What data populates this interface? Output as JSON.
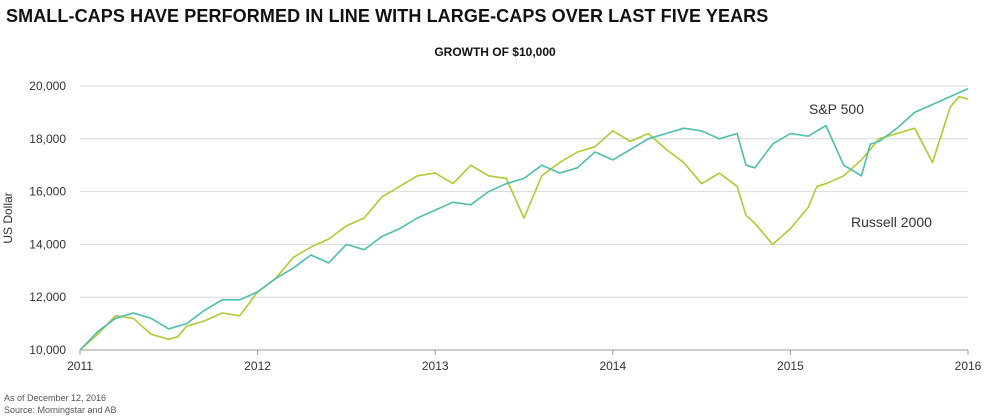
{
  "title": "SMALL-CAPS HAVE PERFORMED IN LINE WITH LARGE-CAPS OVER LAST FIVE YEARS",
  "subtitle": "GROWTH OF $10,000",
  "footnotes": {
    "as_of": "As of December 12, 2016",
    "source": "Source: Morningstar and AB"
  },
  "chart_data": {
    "type": "line",
    "title": "GROWTH OF $10,000",
    "xlabel": "",
    "ylabel": "US Dollar",
    "xlim": [
      2011.0,
      2016.0
    ],
    "ylim": [
      10000,
      20000
    ],
    "x_ticks": [
      2011,
      2012,
      2013,
      2014,
      2015,
      2016
    ],
    "x_tick_labels": [
      "2011",
      "2012",
      "2013",
      "2014",
      "2015",
      "2016"
    ],
    "y_ticks": [
      10000,
      12000,
      14000,
      16000,
      18000,
      20000
    ],
    "y_tick_labels": [
      "10,000",
      "12,000",
      "14,000",
      "16,000",
      "18,000",
      "20,000"
    ],
    "grid": "horizontal",
    "series": [
      {
        "name": "S&P 500",
        "color": "#4dbfad",
        "x": [
          2011.0,
          2011.1,
          2011.2,
          2011.3,
          2011.4,
          2011.5,
          2011.55,
          2011.6,
          2011.7,
          2011.8,
          2011.9,
          2012.0,
          2012.1,
          2012.2,
          2012.3,
          2012.4,
          2012.5,
          2012.6,
          2012.7,
          2012.8,
          2012.9,
          2013.0,
          2013.1,
          2013.2,
          2013.3,
          2013.4,
          2013.5,
          2013.6,
          2013.7,
          2013.8,
          2013.9,
          2014.0,
          2014.1,
          2014.2,
          2014.3,
          2014.4,
          2014.5,
          2014.6,
          2014.7,
          2014.75,
          2014.8,
          2014.9,
          2015.0,
          2015.1,
          2015.2,
          2015.3,
          2015.4,
          2015.45,
          2015.5,
          2015.6,
          2015.7,
          2015.8,
          2015.9,
          2016.0
        ],
        "values": [
          10000,
          10700,
          11200,
          11400,
          11200,
          10800,
          10900,
          11000,
          11500,
          11900,
          11900,
          12200,
          12700,
          13100,
          13600,
          13300,
          14000,
          13800,
          14300,
          14600,
          15000,
          15300,
          15600,
          15500,
          16000,
          16300,
          16500,
          17000,
          16700,
          16900,
          17500,
          17200,
          17600,
          18000,
          18200,
          18400,
          18300,
          18000,
          18200,
          17000,
          16900,
          17800,
          18200,
          18100,
          18500,
          17000,
          16600,
          17800,
          17900,
          18400,
          19000,
          19300,
          19600,
          19900
        ]
      },
      {
        "name": "Russell 2000",
        "color": "#b2c934",
        "x": [
          2011.0,
          2011.1,
          2011.2,
          2011.3,
          2011.4,
          2011.5,
          2011.55,
          2011.6,
          2011.7,
          2011.8,
          2011.9,
          2012.0,
          2012.1,
          2012.2,
          2012.3,
          2012.4,
          2012.5,
          2012.6,
          2012.7,
          2012.8,
          2012.9,
          2013.0,
          2013.1,
          2013.2,
          2013.3,
          2013.4,
          2013.5,
          2013.6,
          2013.7,
          2013.8,
          2013.9,
          2014.0,
          2014.1,
          2014.2,
          2014.3,
          2014.4,
          2014.5,
          2014.6,
          2014.7,
          2014.75,
          2014.8,
          2014.9,
          2015.0,
          2015.1,
          2015.15,
          2015.2,
          2015.3,
          2015.4,
          2015.5,
          2015.6,
          2015.7,
          2015.8,
          2015.9,
          2015.95,
          2016.0
        ],
        "values": [
          10000,
          10600,
          11300,
          11200,
          10600,
          10400,
          10500,
          10900,
          11100,
          11400,
          11300,
          12200,
          12700,
          13500,
          13900,
          14200,
          14700,
          15000,
          15800,
          16200,
          16600,
          16700,
          16300,
          17000,
          16600,
          16500,
          15000,
          16600,
          17100,
          17500,
          17700,
          18300,
          17900,
          18200,
          17600,
          17100,
          16300,
          16700,
          16200,
          15100,
          14800,
          14000,
          14600,
          15400,
          16200,
          16300,
          16600,
          17200,
          18000,
          18200,
          18400,
          17100,
          19200,
          19600,
          19500
        ]
      }
    ],
    "annotations": [
      {
        "text": "S&P 500",
        "series": "S&P 500"
      },
      {
        "text": "Russell 2000",
        "series": "Russell 2000"
      }
    ]
  }
}
